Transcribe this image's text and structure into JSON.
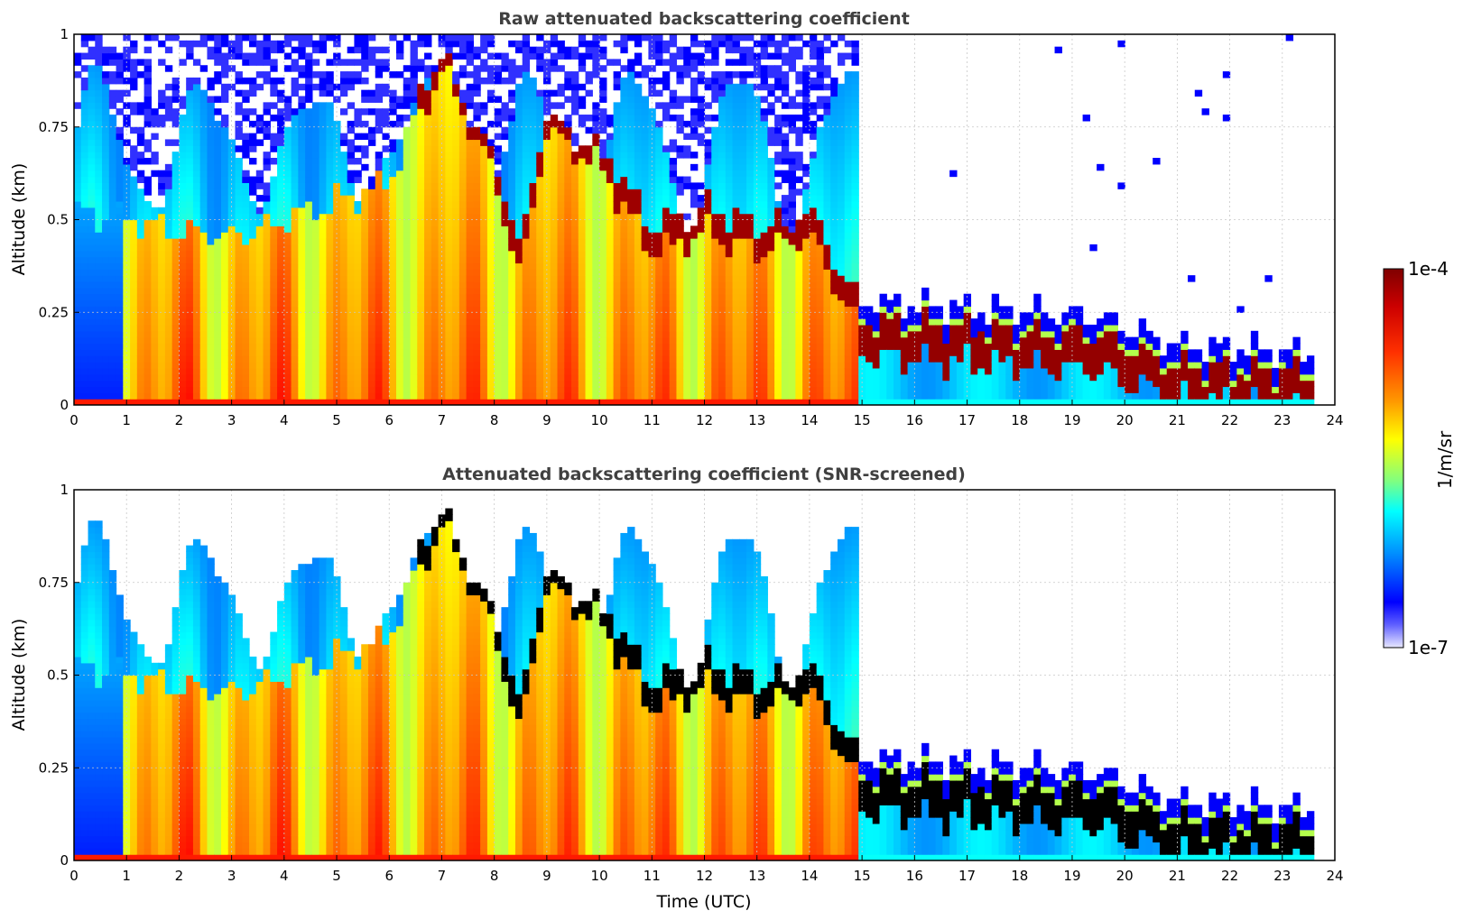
{
  "chart_data": [
    {
      "type": "heatmap",
      "title": "Raw attenuated backscattering coefficient",
      "xlabel": "",
      "ylabel": "Altitude (km)",
      "xlim": [
        0,
        24
      ],
      "ylim": [
        0,
        1
      ],
      "xticks": [
        "0",
        "1",
        "2",
        "3",
        "4",
        "5",
        "6",
        "7",
        "8",
        "9",
        "10",
        "11",
        "12",
        "13",
        "14",
        "15",
        "16",
        "17",
        "18",
        "19",
        "20",
        "21",
        "22",
        "23",
        "24"
      ],
      "yticks": [
        "0",
        "0.25",
        "0.5",
        "0.75",
        "1"
      ],
      "grid": true,
      "screened": false,
      "colorscale": "jet (log)",
      "boundary_layer_top_km": [
        {
          "t": 0.0,
          "z": 0.52
        },
        {
          "t": 1.0,
          "z": 0.5
        },
        {
          "t": 3.0,
          "z": 0.45
        },
        {
          "t": 6.0,
          "z": 0.6
        },
        {
          "t": 7.0,
          "z": 0.95
        },
        {
          "t": 8.0,
          "z": 0.65
        },
        {
          "t": 8.5,
          "z": 0.38
        },
        {
          "t": 9.0,
          "z": 0.78
        },
        {
          "t": 10.0,
          "z": 0.68
        },
        {
          "t": 11.0,
          "z": 0.45
        },
        {
          "t": 12.0,
          "z": 0.5
        },
        {
          "t": 13.0,
          "z": 0.45
        },
        {
          "t": 14.0,
          "z": 0.5
        },
        {
          "t": 15.0,
          "z": 0.22
        },
        {
          "t": 17.0,
          "z": 0.2
        },
        {
          "t": 19.5,
          "z": 0.18
        },
        {
          "t": 21.0,
          "z": 0.1
        },
        {
          "t": 23.6,
          "z": 0.08
        }
      ]
    },
    {
      "type": "heatmap",
      "title": "Attenuated backscattering coefficient (SNR-screened)",
      "xlabel": "Time (UTC)",
      "ylabel": "Altitude (km)",
      "xlim": [
        0,
        24
      ],
      "ylim": [
        0,
        1
      ],
      "xticks": [
        "0",
        "1",
        "2",
        "3",
        "4",
        "5",
        "6",
        "7",
        "8",
        "9",
        "10",
        "11",
        "12",
        "13",
        "14",
        "15",
        "16",
        "17",
        "18",
        "19",
        "20",
        "21",
        "22",
        "23",
        "24"
      ],
      "yticks": [
        "0",
        "0.25",
        "0.5",
        "0.75",
        "1"
      ],
      "grid": true,
      "screened": true,
      "colorscale": "jet (log)"
    }
  ],
  "colorbar": {
    "label": "1/m/sr",
    "max_label": "1e-4",
    "min_label": "1e-7",
    "colors": [
      "#7f0000",
      "#ff0000",
      "#ff7f00",
      "#ffff00",
      "#7fff7f",
      "#00ffff",
      "#007fff",
      "#0000ff",
      "#e8e8ff"
    ]
  }
}
